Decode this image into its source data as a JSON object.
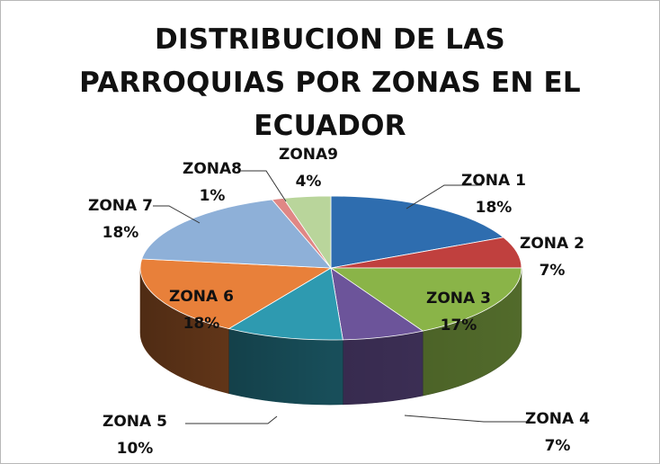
{
  "title_lines": [
    "DISTRIBUCION DE LAS",
    "PARROQUIAS POR ZONAS EN EL",
    "ECUADOR"
  ],
  "chart_data": {
    "type": "pie",
    "title": "DISTRIBUCION DE LAS PARROQUIAS POR ZONAS EN EL ECUADOR",
    "slices": [
      {
        "name": "ZONA 1",
        "value": 18,
        "label": "18%",
        "color": "#2E6DAF"
      },
      {
        "name": "ZONA 2",
        "value": 7,
        "label": "7%",
        "color": "#C0403E"
      },
      {
        "name": "ZONA 3",
        "value": 17,
        "label": "17%",
        "color": "#8AB448"
      },
      {
        "name": "ZONA 4",
        "value": 7,
        "label": "7%",
        "color": "#6C549A"
      },
      {
        "name": "ZONA 5",
        "value": 10,
        "label": "10%",
        "color": "#2E9AB0"
      },
      {
        "name": "ZONA 6",
        "value": 18,
        "label": "18%",
        "color": "#E8803A"
      },
      {
        "name": "ZONA 7",
        "value": 18,
        "label": "18%",
        "color": "#8EB0D8"
      },
      {
        "name": "ZONA8",
        "value": 1,
        "label": "1%",
        "color": "#E08785"
      },
      {
        "name": "ZONA9",
        "value": 4,
        "label": "4%",
        "color": "#B9D59B"
      }
    ],
    "legend": "none",
    "data_labels": "outside with leader lines, inside for ZONA 3 and ZONA 6"
  }
}
